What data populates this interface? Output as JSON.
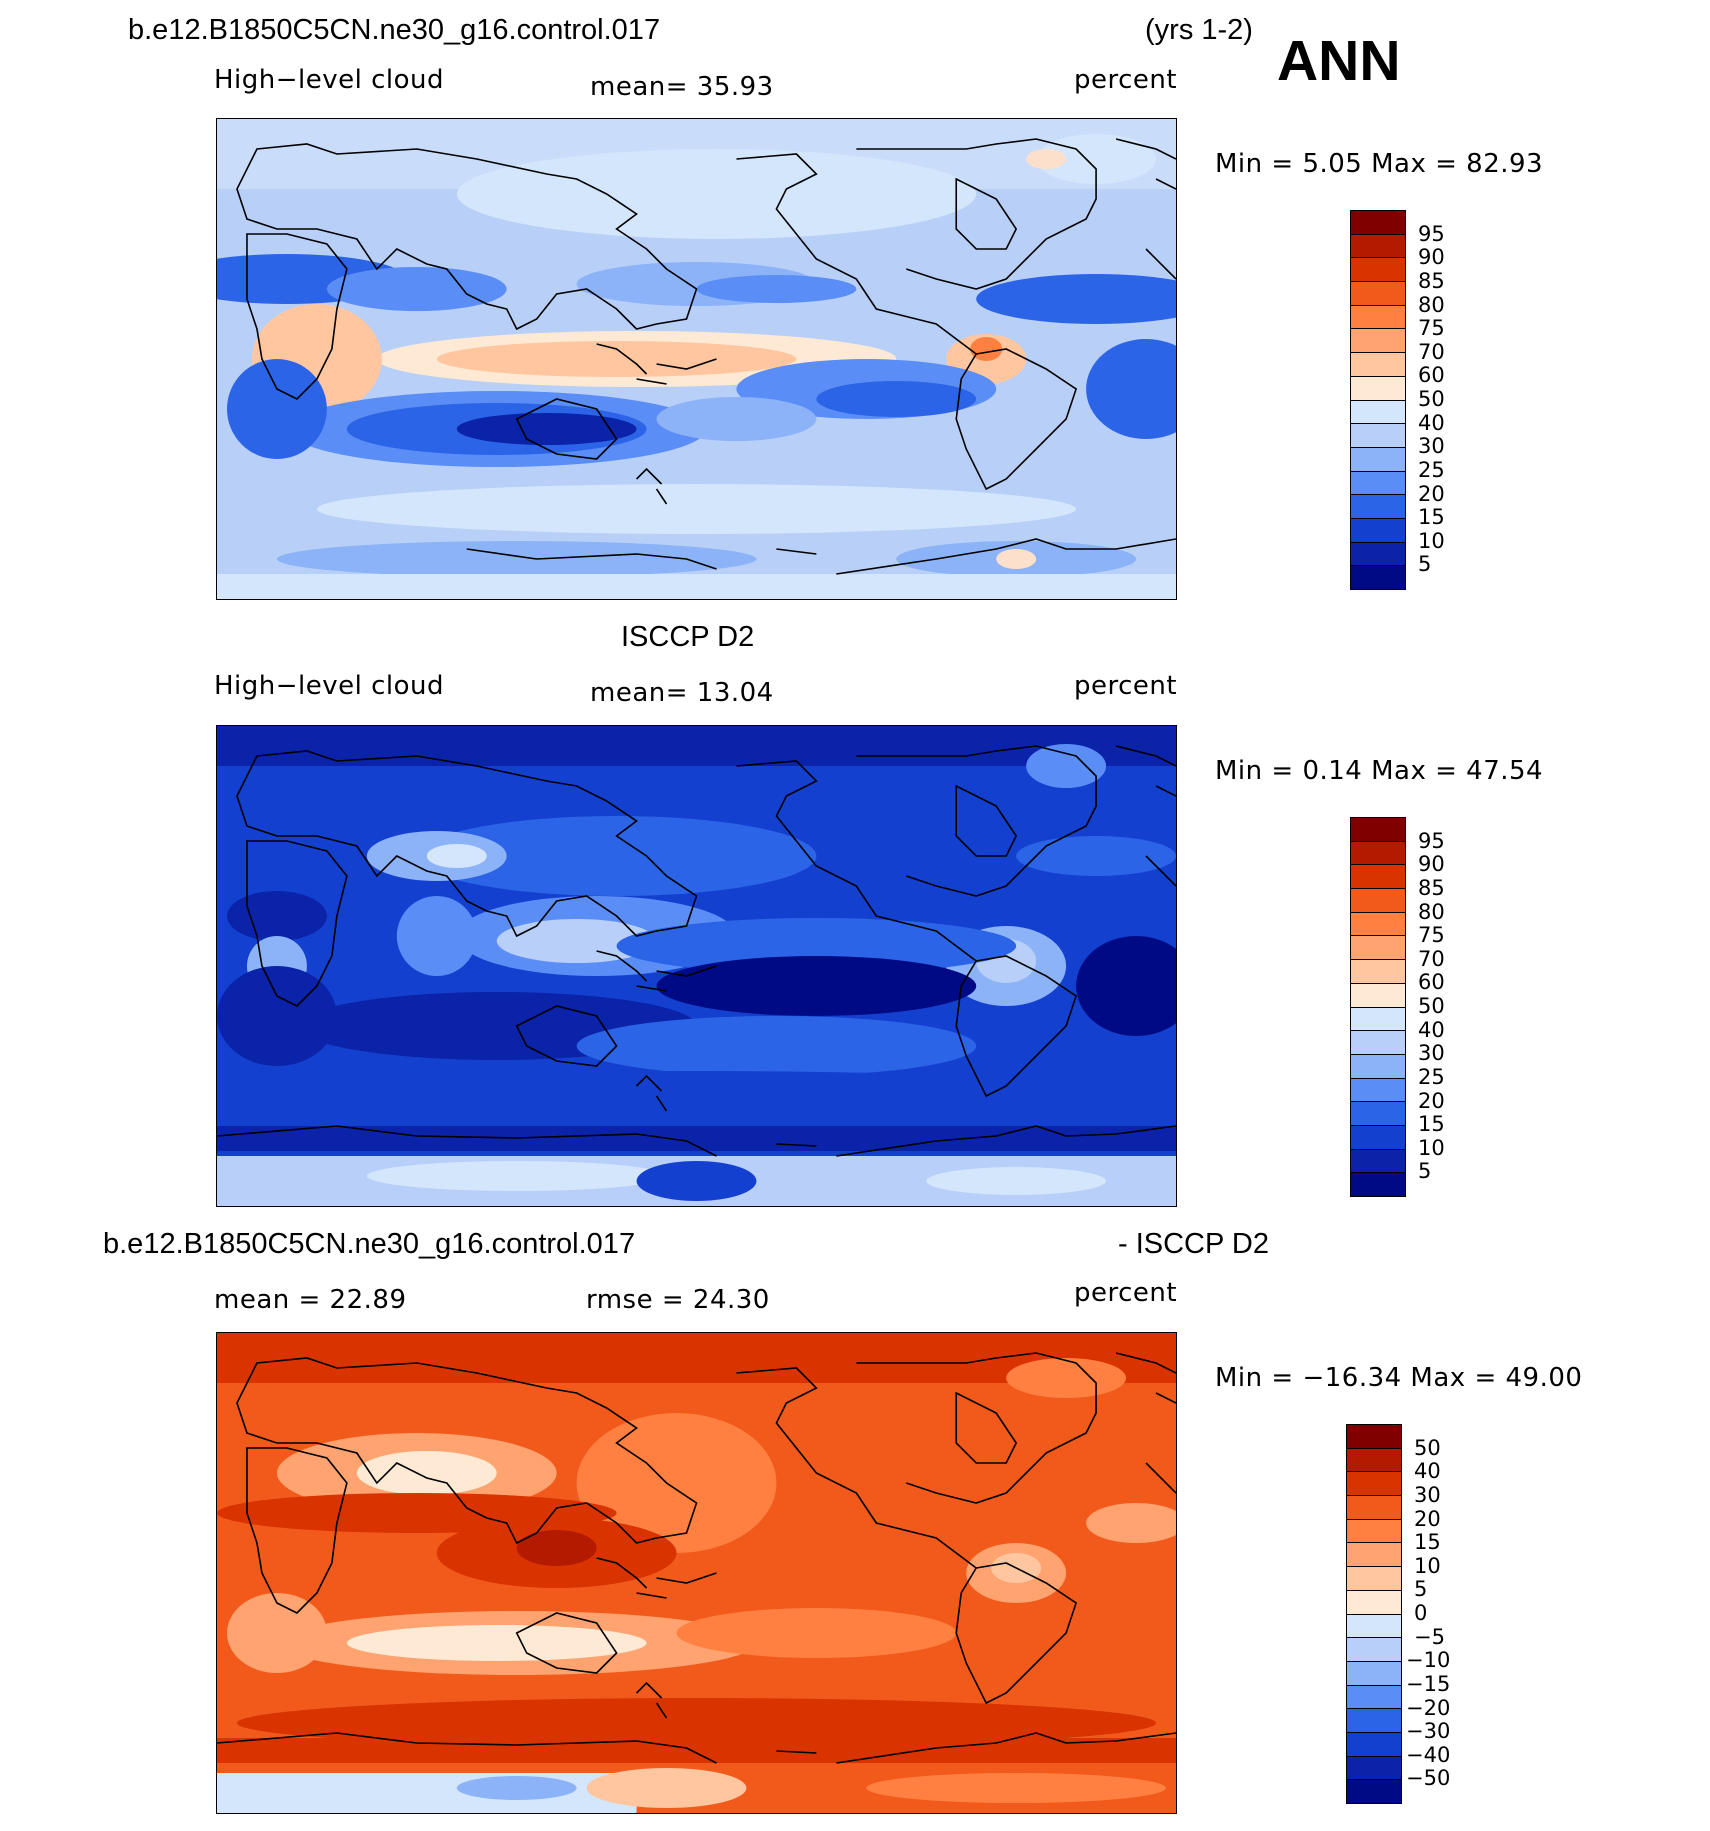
{
  "season_label": "ANN",
  "panels": [
    {
      "case_title": "b.e12.B1850C5CN.ne30_g16.control.017",
      "years": "(yrs 1-2)",
      "left_label": "High−level cloud",
      "stat_label": "mean=   35.93",
      "units": "percent",
      "minmax": "Min =     5.05  Max  =    82.93",
      "colorbar_labels": [
        "95",
        "90",
        "85",
        "80",
        "75",
        "70",
        "60",
        "50",
        "40",
        "30",
        "25",
        "20",
        "15",
        "10",
        "5"
      ],
      "field_mean": 35.93,
      "field_min": 5.05,
      "field_max": 82.93
    },
    {
      "case_title": "ISCCP D2",
      "left_label": "High−level cloud",
      "stat_label": "mean=   13.04",
      "units": "percent",
      "minmax": "Min =     0.14  Max  =    47.54",
      "colorbar_labels": [
        "95",
        "90",
        "85",
        "80",
        "75",
        "70",
        "60",
        "50",
        "40",
        "30",
        "25",
        "20",
        "15",
        "10",
        "5"
      ],
      "field_mean": 13.04,
      "field_min": 0.14,
      "field_max": 47.54
    },
    {
      "case_title": "b.e12.B1850C5CN.ne30_g16.control.017",
      "case_title_right": "- ISCCP D2",
      "left_label": "mean  =    22.89",
      "stat_label": "rmse  =    24.30",
      "units": "percent",
      "minmax": "Min  =  −16.34  Max  =    49.00",
      "colorbar_labels": [
        "50",
        "40",
        "30",
        "20",
        "15",
        "10",
        "5",
        "0",
        "−5",
        "−10",
        "−15",
        "−20",
        "−30",
        "−40",
        "−50"
      ],
      "field_mean": 22.89,
      "field_rmse": 24.3,
      "field_min": -16.34,
      "field_max": 49.0
    }
  ],
  "colors": {
    "scale": [
      "#800000",
      "#b31a00",
      "#d93300",
      "#f25a1c",
      "#ff8040",
      "#ffa370",
      "#ffc6a0",
      "#fde9d4",
      "#d3e6fb",
      "#b7cff9",
      "#8cb2f7",
      "#5a8df5",
      "#2c64e8",
      "#1440d0",
      "#0a23a8",
      "#000a85"
    ],
    "coastline": "#000000"
  }
}
